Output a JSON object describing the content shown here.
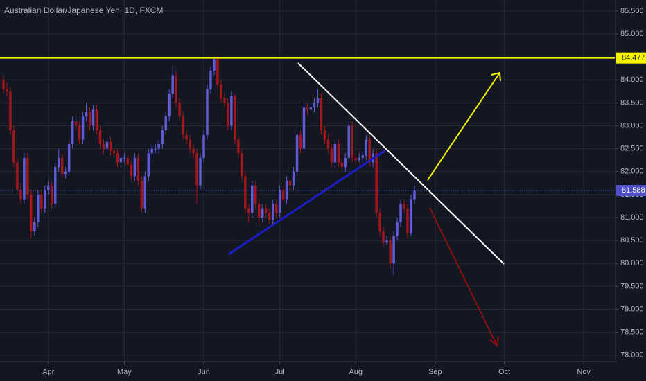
{
  "chart_data": {
    "type": "candlestick",
    "title": "Australian Dollar/Japanese Yen, 1D, FXCM",
    "up_color": "#5f5bd8",
    "down_color": "#a3161c",
    "grid": true,
    "ylim": [
      77.86,
      85.74
    ],
    "yticks": [
      {
        "value": 78,
        "label": "78.000"
      },
      {
        "value": 78.5,
        "label": "78.500"
      },
      {
        "value": 79,
        "label": "79.000"
      },
      {
        "value": 79.5,
        "label": "79.500"
      },
      {
        "value": 80,
        "label": "80.000"
      },
      {
        "value": 80.5,
        "label": "80.500"
      },
      {
        "value": 81,
        "label": "81.000"
      },
      {
        "value": 81.5,
        "label": "81.500"
      },
      {
        "value": 82,
        "label": "82.000"
      },
      {
        "value": 82.5,
        "label": "82.500"
      },
      {
        "value": 83,
        "label": "83.000"
      },
      {
        "value": 83.5,
        "label": "83.500"
      },
      {
        "value": 84,
        "label": "84.000"
      },
      {
        "value": 84.5,
        "label": "84.500"
      },
      {
        "value": 85,
        "label": "85.000"
      },
      {
        "value": 85.5,
        "label": "85.500"
      }
    ],
    "xlim": [
      0,
      178
    ],
    "xticks": [
      {
        "value": 14,
        "label": "Apr"
      },
      {
        "value": 36,
        "label": "May"
      },
      {
        "value": 59,
        "label": "Jun"
      },
      {
        "value": 81,
        "label": "Jul"
      },
      {
        "value": 103,
        "label": "Aug"
      },
      {
        "value": 126,
        "label": "Sep"
      },
      {
        "value": 146,
        "label": "Oct"
      },
      {
        "value": 169,
        "label": "Nov"
      }
    ],
    "resistance": {
      "value": 84.477,
      "color": "#f5f500"
    },
    "last_price": {
      "value": 81.588,
      "color": "#4e4fc9"
    },
    "ohlc": [
      [
        84.0,
        84.1,
        83.7,
        83.8
      ],
      [
        83.8,
        83.95,
        83.65,
        83.75
      ],
      [
        83.75,
        83.85,
        82.8,
        82.9
      ],
      [
        82.9,
        83.0,
        82.1,
        82.2
      ],
      [
        82.2,
        82.3,
        81.5,
        81.6
      ],
      [
        81.6,
        81.75,
        81.3,
        81.4
      ],
      [
        81.4,
        82.4,
        81.3,
        82.3
      ],
      [
        82.3,
        82.4,
        81.4,
        81.5
      ],
      [
        81.5,
        81.6,
        80.55,
        80.7
      ],
      [
        80.7,
        81.0,
        80.6,
        80.9
      ],
      [
        80.9,
        81.6,
        80.8,
        81.5
      ],
      [
        81.5,
        81.6,
        81.1,
        81.2
      ],
      [
        81.2,
        81.7,
        81.1,
        81.6
      ],
      [
        81.6,
        81.8,
        81.5,
        81.7
      ],
      [
        81.7,
        81.8,
        81.2,
        81.3
      ],
      [
        81.3,
        82.2,
        81.2,
        82.1
      ],
      [
        82.1,
        82.5,
        82.0,
        82.3
      ],
      [
        82.3,
        82.4,
        81.85,
        81.95
      ],
      [
        81.95,
        82.1,
        81.85,
        82.0
      ],
      [
        82.0,
        82.7,
        81.9,
        82.6
      ],
      [
        82.6,
        83.2,
        82.5,
        83.1
      ],
      [
        83.1,
        83.25,
        82.9,
        83.0
      ],
      [
        83.0,
        83.1,
        82.6,
        82.7
      ],
      [
        82.7,
        83.3,
        82.6,
        83.2
      ],
      [
        83.2,
        83.5,
        83.1,
        83.3
      ],
      [
        83.3,
        83.4,
        82.9,
        83.0
      ],
      [
        83.0,
        83.45,
        82.9,
        83.35
      ],
      [
        83.35,
        83.45,
        82.8,
        82.9
      ],
      [
        82.9,
        83.0,
        82.5,
        82.6
      ],
      [
        82.6,
        82.7,
        82.4,
        82.5
      ],
      [
        82.5,
        82.75,
        82.4,
        82.65
      ],
      [
        82.65,
        82.75,
        82.35,
        82.45
      ],
      [
        82.45,
        82.55,
        82.3,
        82.4
      ],
      [
        82.4,
        82.5,
        82.1,
        82.2
      ],
      [
        82.2,
        82.4,
        82.1,
        82.3
      ],
      [
        82.3,
        82.4,
        82.2,
        82.3
      ],
      [
        82.3,
        82.4,
        82.05,
        82.15
      ],
      [
        82.15,
        82.25,
        81.8,
        81.9
      ],
      [
        81.9,
        82.4,
        81.8,
        82.3
      ],
      [
        82.3,
        82.4,
        81.7,
        81.8
      ],
      [
        81.8,
        81.9,
        81.1,
        81.2
      ],
      [
        81.2,
        82.0,
        81.1,
        81.9
      ],
      [
        81.9,
        82.5,
        81.8,
        82.4
      ],
      [
        82.4,
        82.6,
        82.3,
        82.5
      ],
      [
        82.5,
        82.6,
        82.4,
        82.5
      ],
      [
        82.5,
        82.7,
        82.4,
        82.6
      ],
      [
        82.6,
        83.0,
        82.5,
        82.9
      ],
      [
        82.9,
        83.3,
        82.8,
        83.2
      ],
      [
        83.2,
        83.8,
        83.1,
        83.7
      ],
      [
        83.7,
        84.3,
        83.6,
        84.1
      ],
      [
        84.1,
        84.2,
        83.4,
        83.5
      ],
      [
        83.5,
        83.6,
        83.1,
        83.2
      ],
      [
        83.2,
        83.3,
        82.7,
        82.8
      ],
      [
        82.8,
        82.9,
        82.6,
        82.7
      ],
      [
        82.7,
        82.8,
        82.4,
        82.5
      ],
      [
        82.5,
        82.6,
        82.3,
        82.4
      ],
      [
        82.4,
        82.5,
        81.3,
        81.7
      ],
      [
        81.7,
        82.4,
        81.6,
        82.3
      ],
      [
        82.3,
        82.9,
        82.2,
        82.8
      ],
      [
        82.8,
        83.9,
        82.7,
        83.8
      ],
      [
        83.8,
        84.3,
        83.7,
        84.2
      ],
      [
        84.2,
        84.5,
        84.1,
        84.45
      ],
      [
        84.45,
        84.5,
        83.8,
        83.9
      ],
      [
        83.9,
        84.0,
        83.5,
        83.6
      ],
      [
        83.6,
        83.7,
        83.4,
        83.5
      ],
      [
        83.5,
        83.6,
        82.9,
        83.0
      ],
      [
        83.0,
        83.75,
        82.9,
        83.65
      ],
      [
        83.65,
        83.7,
        82.6,
        82.7
      ],
      [
        82.7,
        82.8,
        82.3,
        82.4
      ],
      [
        82.4,
        82.5,
        81.8,
        81.9
      ],
      [
        81.9,
        82.0,
        81.1,
        81.2
      ],
      [
        81.2,
        81.3,
        80.9,
        81.1
      ],
      [
        81.1,
        81.8,
        81.0,
        81.7
      ],
      [
        81.7,
        81.8,
        81.2,
        81.3
      ],
      [
        81.3,
        81.4,
        80.8,
        81.0
      ],
      [
        81.0,
        81.3,
        80.9,
        81.2
      ],
      [
        81.2,
        81.3,
        81.0,
        81.1
      ],
      [
        81.1,
        81.2,
        80.85,
        80.95
      ],
      [
        80.95,
        81.4,
        80.85,
        81.3
      ],
      [
        81.3,
        81.4,
        81.0,
        81.1
      ],
      [
        81.1,
        81.7,
        81.0,
        81.6
      ],
      [
        81.6,
        81.7,
        81.3,
        81.4
      ],
      [
        81.4,
        81.9,
        81.3,
        81.8
      ],
      [
        81.8,
        81.9,
        81.6,
        81.7
      ],
      [
        81.7,
        82.1,
        81.6,
        82.0
      ],
      [
        82.0,
        82.9,
        81.9,
        82.8
      ],
      [
        82.8,
        82.9,
        82.4,
        82.5
      ],
      [
        82.5,
        83.5,
        82.4,
        83.4
      ],
      [
        83.4,
        83.5,
        83.25,
        83.35
      ],
      [
        83.35,
        83.5,
        83.3,
        83.4
      ],
      [
        83.4,
        83.6,
        83.3,
        83.5
      ],
      [
        83.5,
        83.8,
        83.4,
        83.6
      ],
      [
        83.6,
        83.7,
        82.8,
        82.9
      ],
      [
        82.9,
        83.0,
        82.6,
        82.7
      ],
      [
        82.7,
        82.8,
        82.4,
        82.5
      ],
      [
        82.5,
        82.6,
        82.1,
        82.2
      ],
      [
        82.2,
        82.7,
        82.1,
        82.6
      ],
      [
        82.6,
        82.7,
        82.1,
        82.2
      ],
      [
        82.2,
        82.3,
        82.0,
        82.1
      ],
      [
        82.1,
        82.4,
        82.0,
        82.3
      ],
      [
        82.3,
        83.1,
        82.2,
        83.0
      ],
      [
        83.0,
        83.1,
        82.2,
        82.3
      ],
      [
        82.3,
        82.4,
        82.15,
        82.25
      ],
      [
        82.25,
        82.4,
        82.2,
        82.3
      ],
      [
        82.3,
        82.45,
        82.2,
        82.35
      ],
      [
        82.35,
        82.8,
        82.25,
        82.7
      ],
      [
        82.7,
        82.8,
        82.1,
        82.2
      ],
      [
        82.2,
        82.5,
        82.1,
        82.4
      ],
      [
        82.4,
        82.5,
        81.0,
        81.1
      ],
      [
        81.1,
        81.2,
        80.6,
        80.7
      ],
      [
        80.7,
        80.8,
        80.35,
        80.45
      ],
      [
        80.45,
        80.6,
        80.4,
        80.5
      ],
      [
        80.5,
        80.6,
        79.9,
        80.0
      ],
      [
        80.0,
        80.7,
        79.75,
        80.6
      ],
      [
        80.6,
        81.0,
        80.5,
        80.9
      ],
      [
        80.9,
        81.4,
        80.8,
        81.3
      ],
      [
        81.3,
        81.4,
        81.1,
        81.2
      ],
      [
        81.2,
        81.3,
        80.55,
        80.65
      ],
      [
        80.65,
        81.5,
        80.6,
        81.4
      ],
      [
        81.4,
        81.7,
        81.3,
        81.588
      ]
    ]
  }
}
